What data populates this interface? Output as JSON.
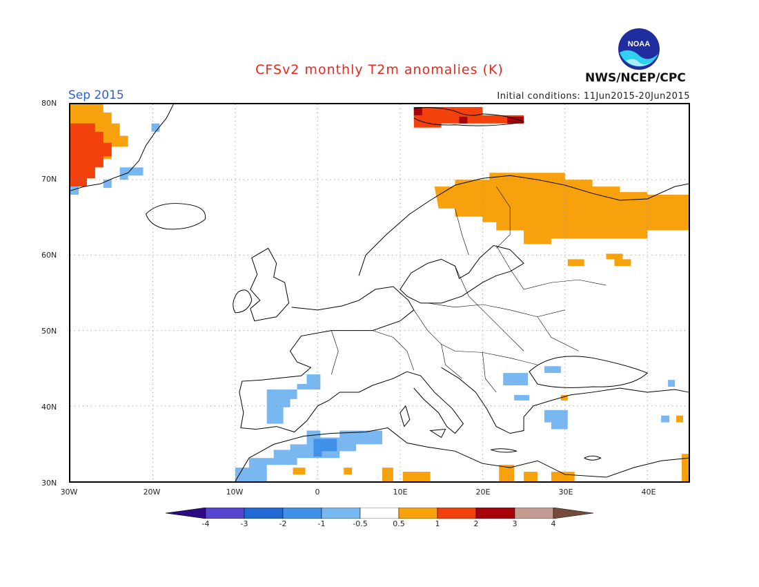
{
  "header": {
    "title": "CFSv2 monthly T2m anomalies (K)",
    "valid_month": "Sep 2015",
    "initial_conditions": "Initial conditions: 11Jun2015-20Jun2015",
    "agency": "NWS/NCEP/CPC",
    "logo_text": "NOAA"
  },
  "map": {
    "lon_range": [
      "30W",
      "45E"
    ],
    "lat_range": [
      "30N",
      "80N"
    ],
    "grid": "dotted",
    "lat_labels": [
      "80N",
      "70N",
      "60N",
      "50N",
      "40N",
      "30N"
    ],
    "lon_labels": [
      "30W",
      "20W",
      "10W",
      "0",
      "10E",
      "20E",
      "30E",
      "40E"
    ]
  },
  "colorbar": {
    "labels": [
      "-4",
      "-3",
      "-2",
      "-1",
      "-0.5",
      "0.5",
      "1",
      "2",
      "3",
      "4"
    ],
    "colors": [
      "#2d0b82",
      "#5445d0",
      "#2269d3",
      "#3f91ea",
      "#78b7f0",
      "#ffffff",
      "#f7a20d",
      "#f2410d",
      "#a6040a",
      "#c69c90",
      "#754b3e"
    ]
  },
  "colors": {
    "light_blue": "#78b7f0",
    "mid_blue": "#3f91ea",
    "orange": "#f7a20d",
    "red_orange": "#f2410d",
    "dark_red": "#a6040a"
  }
}
